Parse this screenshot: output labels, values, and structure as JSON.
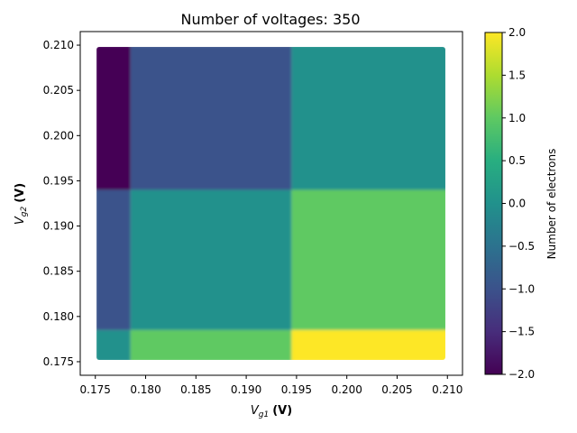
{
  "chart_data": {
    "type": "heatmap",
    "title": "Number of voltages: 350",
    "xlabel": {
      "base": "V",
      "sub": "g1",
      "unit": "(V)"
    },
    "ylabel": {
      "base": "V",
      "sub": "g2",
      "unit": "(V)"
    },
    "xlim": [
      0.1735,
      0.2115
    ],
    "ylim": [
      0.1735,
      0.2115
    ],
    "x_ticks": [
      "0.175",
      "0.180",
      "0.185",
      "0.190",
      "0.195",
      "0.200",
      "0.205",
      "0.210"
    ],
    "y_ticks": [
      "0.175",
      "0.180",
      "0.185",
      "0.190",
      "0.195",
      "0.200",
      "0.205",
      "0.210"
    ],
    "data_extent": {
      "x": [
        0.175,
        0.21
      ],
      "y": [
        0.175,
        0.21
      ]
    },
    "x_boundaries": [
      0.1785,
      0.1945
    ],
    "y_boundaries": [
      0.1785,
      0.194
    ],
    "cells": [
      {
        "x": [
          0.175,
          0.1785
        ],
        "y": [
          0.194,
          0.21
        ],
        "value": -2
      },
      {
        "x": [
          0.1785,
          0.1945
        ],
        "y": [
          0.194,
          0.21
        ],
        "value": -1
      },
      {
        "x": [
          0.1945,
          0.21
        ],
        "y": [
          0.194,
          0.21
        ],
        "value": 0
      },
      {
        "x": [
          0.175,
          0.1785
        ],
        "y": [
          0.1785,
          0.194
        ],
        "value": -1
      },
      {
        "x": [
          0.1785,
          0.1945
        ],
        "y": [
          0.1785,
          0.194
        ],
        "value": 0
      },
      {
        "x": [
          0.1945,
          0.21
        ],
        "y": [
          0.1785,
          0.194
        ],
        "value": 1
      },
      {
        "x": [
          0.175,
          0.1785
        ],
        "y": [
          0.175,
          0.1785
        ],
        "value": 0
      },
      {
        "x": [
          0.1785,
          0.1945
        ],
        "y": [
          0.175,
          0.1785
        ],
        "value": 1
      },
      {
        "x": [
          0.1945,
          0.21
        ],
        "y": [
          0.175,
          0.1785
        ],
        "value": 2
      }
    ],
    "colorbar": {
      "label": "Number of electrons",
      "range": [
        -2.0,
        2.0
      ],
      "ticks": [
        -2.0,
        -1.5,
        -1.0,
        -0.5,
        0.0,
        0.5,
        1.0,
        1.5,
        2.0
      ],
      "tick_labels": [
        "−2.0",
        "−1.5",
        "−1.0",
        "−0.5",
        "0.0",
        "0.5",
        "1.0",
        "1.5",
        "2.0"
      ],
      "colormap": "viridis",
      "colors": {
        "-2": "#440154",
        "-1": "#3b528b",
        "0": "#21918c",
        "1": "#5ec962",
        "2": "#fde725"
      }
    },
    "grid": false
  }
}
